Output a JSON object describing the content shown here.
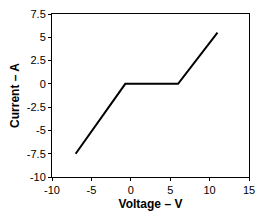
{
  "chart_data": {
    "type": "line",
    "xlabel": "Voltage – V",
    "ylabel": "Current – A",
    "x": [
      -7,
      -0.7,
      6,
      11
    ],
    "values": [
      -7.5,
      0,
      0,
      5.5
    ],
    "color": "#000000",
    "xlim": [
      -10,
      15
    ],
    "xticks": [
      -10,
      -5,
      0,
      5,
      10,
      15
    ],
    "ylim": [
      -10,
      7.5
    ],
    "yticks": [
      -10,
      -7.5,
      -5,
      -2.5,
      0,
      2.5,
      5,
      7.5
    ],
    "grid": false
  }
}
